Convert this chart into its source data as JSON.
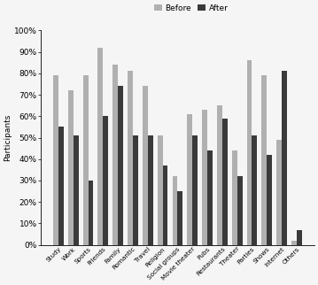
{
  "categories": [
    "Study",
    "Work",
    "Sports",
    "Friends",
    "Family",
    "Romantic",
    "Travel",
    "Religion",
    "Social groups",
    "Movie theater",
    "Pubs",
    "Restaurants",
    "Theater",
    "Parties",
    "Shows",
    "Internet",
    "Others"
  ],
  "before": [
    79,
    72,
    79,
    92,
    84,
    81,
    74,
    51,
    32,
    61,
    63,
    65,
    44,
    86,
    79,
    49,
    2
  ],
  "after": [
    55,
    51,
    30,
    60,
    74,
    51,
    51,
    37,
    25,
    51,
    44,
    59,
    32,
    51,
    42,
    81,
    7
  ],
  "before_color": "#b0b0b0",
  "after_color": "#3a3a3a",
  "ylabel": "Participants",
  "ytick_labels": [
    "0%",
    "10%",
    "20%",
    "30%",
    "40%",
    "50%",
    "60%",
    "70%",
    "80%",
    "90%",
    "100%"
  ],
  "ytick_values": [
    0,
    10,
    20,
    30,
    40,
    50,
    60,
    70,
    80,
    90,
    100
  ],
  "legend_before": "Before",
  "legend_after": "After",
  "bar_width": 0.35,
  "background_color": "#f5f5f5",
  "figsize": [
    3.59,
    3.22
  ],
  "dpi": 100
}
